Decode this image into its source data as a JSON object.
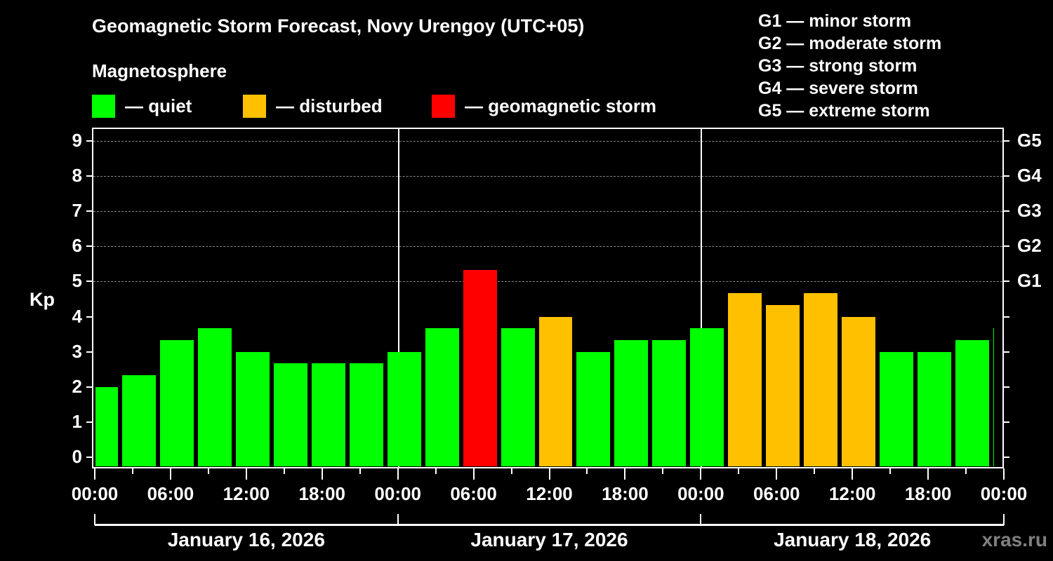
{
  "header": {
    "title": "Geomagnetic Storm Forecast, Novy Urengoy (UTC+05)",
    "subtitle": "Magnetosphere"
  },
  "legend": [
    {
      "label": "— quiet",
      "color": "#00ff00"
    },
    {
      "label": "— disturbed",
      "color": "#ffc000"
    },
    {
      "label": "— geomagnetic storm",
      "color": "#ff0000"
    }
  ],
  "g_scale": [
    "G1 — minor storm",
    "G2 — moderate storm",
    "G3 — strong storm",
    "G4 — severe storm",
    "G5 — extreme storm"
  ],
  "watermark": "xras.ru",
  "chart_data": {
    "type": "bar",
    "title": "Geomagnetic Storm Forecast, Novy Urengoy (UTC+05)",
    "xlabel": "",
    "ylabel": "Kp",
    "ylim": [
      0,
      9
    ],
    "yticks": [
      "0",
      "1",
      "2",
      "3",
      "4",
      "5",
      "6",
      "7",
      "8",
      "9"
    ],
    "right_axis": [
      {
        "kp": 5,
        "label": "G1"
      },
      {
        "kp": 6,
        "label": "G2"
      },
      {
        "kp": 7,
        "label": "G3"
      },
      {
        "kp": 8,
        "label": "G4"
      },
      {
        "kp": 9,
        "label": "G5"
      }
    ],
    "xticks": [
      "00:00",
      "06:00",
      "12:00",
      "18:00",
      "00:00",
      "06:00",
      "12:00",
      "18:00",
      "00:00",
      "06:00",
      "12:00",
      "18:00",
      "00:00"
    ],
    "days": [
      "January 16, 2026",
      "January 17, 2026",
      "January 18, 2026"
    ],
    "grid": "horizontal dashed at Kp 5-9",
    "bar_interval_hours": 3,
    "bar_offset_hours": 2,
    "categories": [
      "Jan16 23:00-02:00",
      "Jan16 02:00-05:00",
      "Jan16 05:00-08:00",
      "Jan16 08:00-11:00",
      "Jan16 11:00-14:00",
      "Jan16 14:00-17:00",
      "Jan16 17:00-20:00",
      "Jan16 20:00-23:00",
      "Jan16 23:00-02:00",
      "Jan17 02:00-05:00",
      "Jan17 05:00-08:00",
      "Jan17 08:00-11:00",
      "Jan17 11:00-14:00",
      "Jan17 14:00-17:00",
      "Jan17 17:00-20:00",
      "Jan17 20:00-23:00",
      "Jan17 23:00-02:00",
      "Jan18 02:00-05:00",
      "Jan18 05:00-08:00",
      "Jan18 08:00-11:00",
      "Jan18 11:00-14:00",
      "Jan18 14:00-17:00",
      "Jan18 17:00-20:00",
      "Jan18 20:00-23:00",
      "Jan18 23:00-02:00"
    ],
    "values": [
      2.0,
      2.33,
      3.33,
      3.67,
      3.0,
      2.67,
      2.67,
      2.67,
      3.0,
      3.67,
      5.33,
      3.67,
      4.0,
      3.0,
      3.33,
      3.33,
      3.67,
      4.67,
      4.33,
      4.67,
      4.0,
      3.0,
      3.0,
      3.33,
      3.67
    ],
    "status": [
      "quiet",
      "quiet",
      "quiet",
      "quiet",
      "quiet",
      "quiet",
      "quiet",
      "quiet",
      "quiet",
      "quiet",
      "storm",
      "quiet",
      "disturbed",
      "quiet",
      "quiet",
      "quiet",
      "quiet",
      "disturbed",
      "disturbed",
      "disturbed",
      "disturbed",
      "quiet",
      "quiet",
      "quiet",
      "quiet"
    ],
    "colors": {
      "quiet": "#00ff00",
      "disturbed": "#ffc000",
      "storm": "#ff0000"
    }
  }
}
